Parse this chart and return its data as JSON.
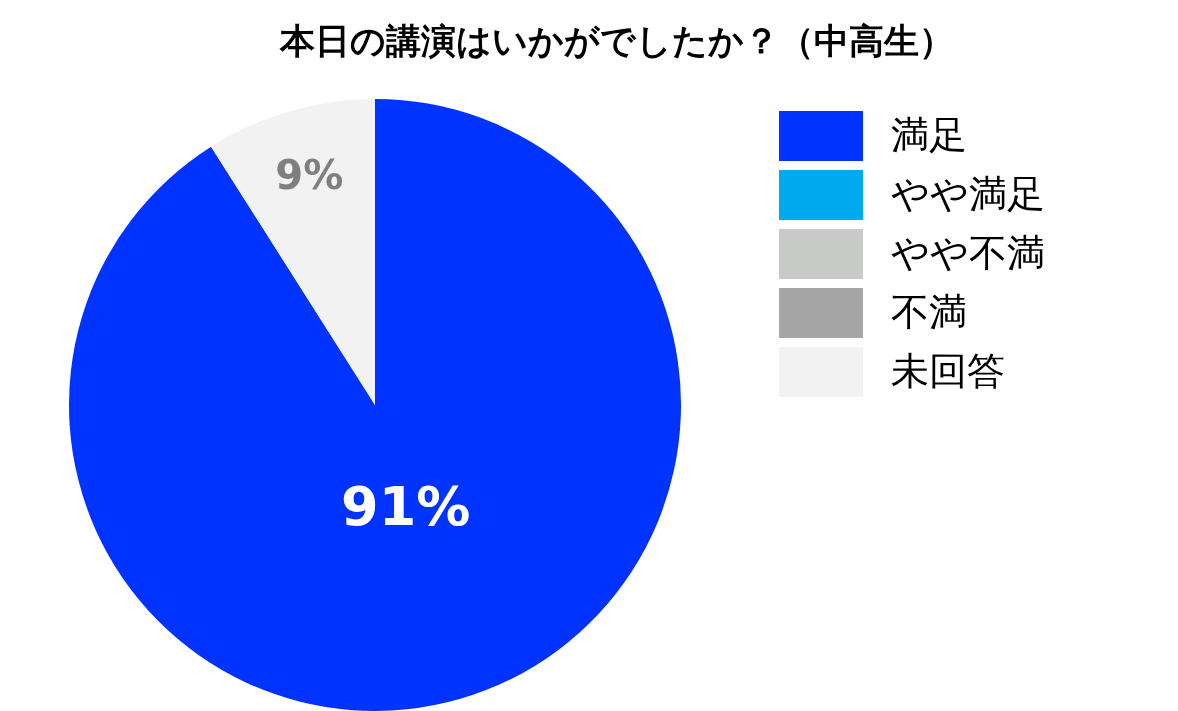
{
  "chart_data": {
    "type": "pie",
    "title": "本日の講演はいかがでしたか？（中高生）",
    "categories": [
      "満足",
      "やや満足",
      "やや不満",
      "不満",
      "未回答"
    ],
    "values": [
      91,
      0,
      0,
      0,
      9
    ],
    "colors": [
      "#0033ff",
      "#00aaee",
      "#c8cac8",
      "#a6a6a6",
      "#f2f2f2"
    ],
    "value_labels": [
      "91%",
      null,
      null,
      null,
      "9%"
    ],
    "legend": "right"
  }
}
